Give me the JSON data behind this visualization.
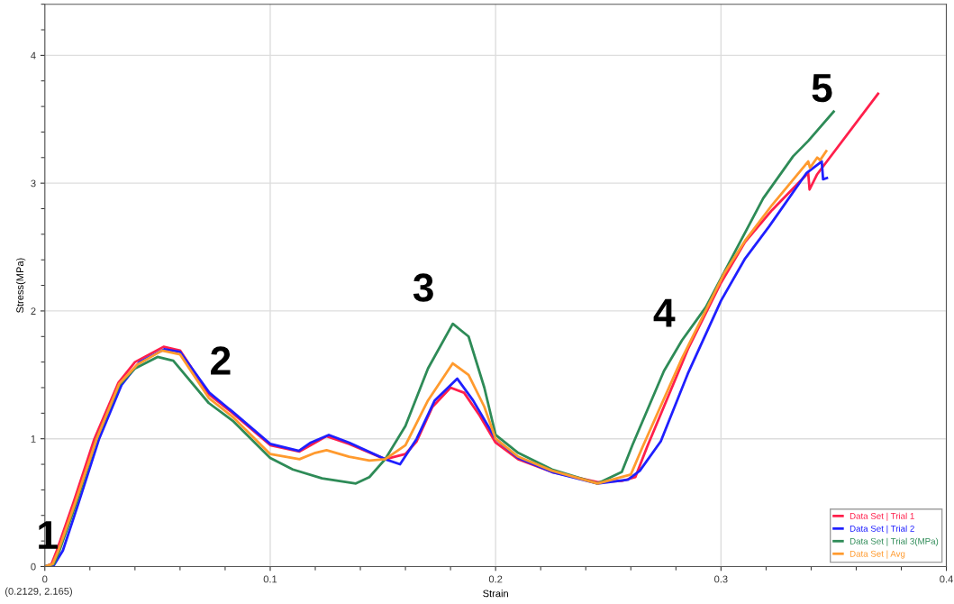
{
  "chart_data": {
    "type": "line",
    "xlabel": "Strain",
    "ylabel": "Stress(MPa)",
    "xlim": [
      0,
      0.4
    ],
    "ylim": [
      0,
      4.4
    ],
    "xticks": [
      0,
      0.1,
      0.2,
      0.3,
      0.4
    ],
    "yticks": [
      0,
      1,
      2,
      3,
      4
    ],
    "grid": true,
    "legend": "bottom right",
    "marker": "none",
    "line_style": "solid",
    "series": [
      {
        "name": "Data Set | Trial 1",
        "color": "#ff1f4b",
        "x": [
          0,
          0.003,
          0.0053,
          0.0127,
          0.022,
          0.0327,
          0.04,
          0.0527,
          0.06,
          0.0727,
          0.0834,
          0.1,
          0.113,
          0.118,
          0.125,
          0.135,
          0.151,
          0.16,
          0.165,
          0.172,
          0.18,
          0.186,
          0.193,
          0.2,
          0.21,
          0.225,
          0.2453,
          0.256,
          0.262,
          0.2673,
          0.2853,
          0.3,
          0.3107,
          0.3227,
          0.3387,
          0.3393,
          0.3427,
          0.3697
        ],
        "values": [
          0,
          0.02,
          0.125,
          0.5,
          1.0,
          1.44,
          1.6,
          1.72,
          1.69,
          1.35,
          1.2,
          0.95,
          0.9,
          0.95,
          1.02,
          0.96,
          0.84,
          0.88,
          0.98,
          1.25,
          1.4,
          1.36,
          1.18,
          0.97,
          0.84,
          0.74,
          0.66,
          0.67,
          0.7,
          0.94,
          1.7,
          2.22,
          2.54,
          2.79,
          3.08,
          2.95,
          3.07,
          3.7
        ]
      },
      {
        "name": "Data Set | Trial 2",
        "color": "#1f1fff",
        "x": [
          0,
          0.004,
          0.008,
          0.015,
          0.0241,
          0.034,
          0.042,
          0.053,
          0.06,
          0.073,
          0.0834,
          0.1,
          0.1127,
          0.118,
          0.126,
          0.135,
          0.151,
          0.1576,
          0.165,
          0.173,
          0.183,
          0.19,
          0.2,
          0.21,
          0.225,
          0.2453,
          0.2587,
          0.264,
          0.2733,
          0.2853,
          0.3,
          0.3107,
          0.3213,
          0.338,
          0.3447,
          0.3453,
          0.347
        ],
        "values": [
          0,
          0.01,
          0.125,
          0.5,
          1.0,
          1.42,
          1.6,
          1.7,
          1.68,
          1.36,
          1.21,
          0.96,
          0.905,
          0.97,
          1.03,
          0.97,
          0.84,
          0.8,
          1.0,
          1.3,
          1.47,
          1.3,
          1.0,
          0.85,
          0.74,
          0.65,
          0.68,
          0.75,
          0.98,
          1.51,
          2.08,
          2.41,
          2.66,
          3.08,
          3.17,
          3.03,
          3.04
        ]
      },
      {
        "name": "Data Set | Trial 3(MPa)",
        "color": "#2e8b57",
        "x": [
          0,
          0.004,
          0.0065,
          0.014,
          0.023,
          0.033,
          0.04,
          0.05,
          0.057,
          0.0727,
          0.0834,
          0.1,
          0.11,
          0.123,
          0.138,
          0.144,
          0.151,
          0.16,
          0.17,
          0.181,
          0.188,
          0.195,
          0.2,
          0.21,
          0.225,
          0.2453,
          0.256,
          0.2607,
          0.2747,
          0.2827,
          0.2933,
          0.3067,
          0.3187,
          0.332,
          0.3387,
          0.35
        ],
        "values": [
          0,
          0.02,
          0.125,
          0.5,
          1.0,
          1.42,
          1.55,
          1.64,
          1.61,
          1.28,
          1.14,
          0.85,
          0.76,
          0.69,
          0.65,
          0.7,
          0.84,
          1.1,
          1.55,
          1.9,
          1.8,
          1.4,
          1.03,
          0.89,
          0.76,
          0.65,
          0.74,
          0.95,
          1.53,
          1.77,
          2.03,
          2.48,
          2.88,
          3.21,
          3.33,
          3.56
        ]
      },
      {
        "name": "Data Set | Avg",
        "color": "#ff9a2e",
        "x": [
          0,
          0.0035,
          0.006,
          0.0135,
          0.023,
          0.033,
          0.041,
          0.052,
          0.06,
          0.0727,
          0.0834,
          0.1,
          0.113,
          0.12,
          0.125,
          0.135,
          0.144,
          0.151,
          0.16,
          0.17,
          0.181,
          0.188,
          0.195,
          0.2,
          0.21,
          0.225,
          0.2453,
          0.26,
          0.2653,
          0.2827,
          0.3013,
          0.3107,
          0.3227,
          0.3387,
          0.3395,
          0.3427,
          0.344,
          0.3467
        ],
        "values": [
          0,
          0.02,
          0.125,
          0.5,
          1.0,
          1.43,
          1.58,
          1.69,
          1.66,
          1.32,
          1.17,
          0.88,
          0.84,
          0.89,
          0.91,
          0.86,
          0.83,
          0.84,
          0.95,
          1.3,
          1.59,
          1.5,
          1.25,
          1.0,
          0.86,
          0.75,
          0.65,
          0.72,
          0.94,
          1.63,
          2.29,
          2.55,
          2.83,
          3.17,
          3.12,
          3.2,
          3.18,
          3.25
        ]
      }
    ],
    "annotations": [
      "1",
      "2",
      "3",
      "4",
      "5",
      "(0.2129, 2.165)"
    ]
  }
}
